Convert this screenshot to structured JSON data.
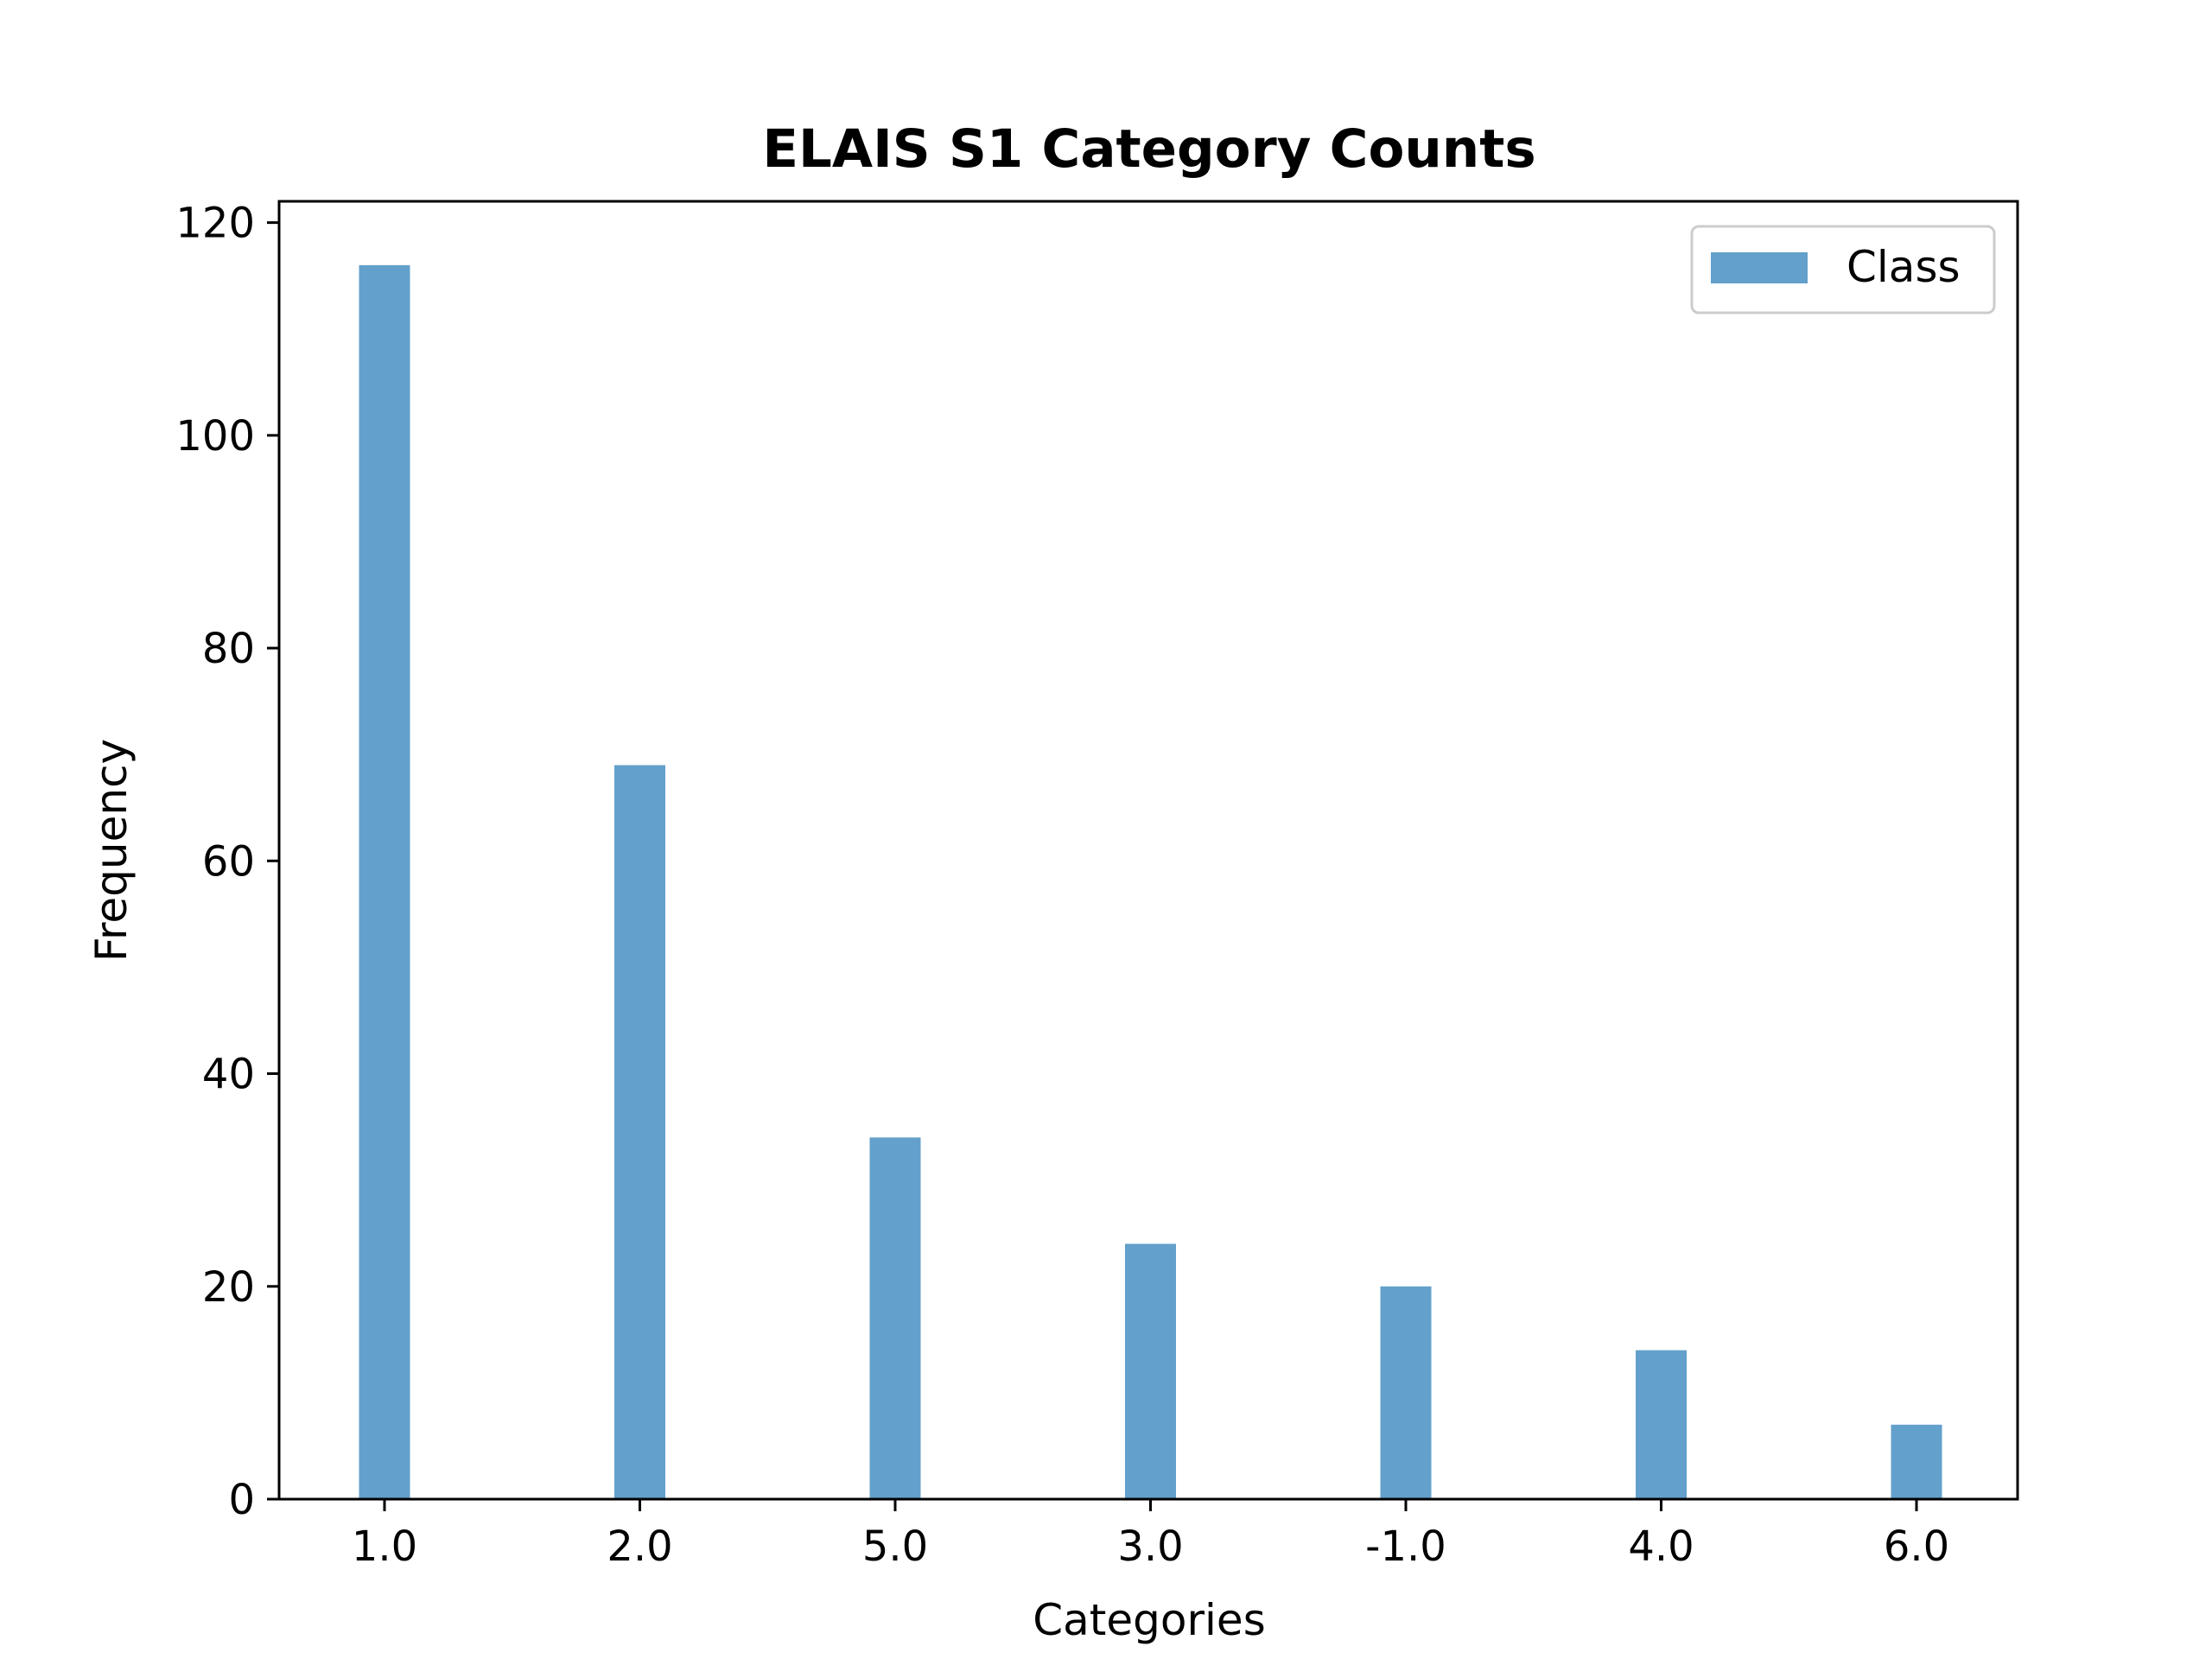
{
  "chart_data": {
    "type": "bar",
    "title": "ELAIS S1 Category Counts",
    "xlabel": "Categories",
    "ylabel": "Frequency",
    "categories": [
      "1.0",
      "2.0",
      "5.0",
      "3.0",
      "-1.0",
      "4.0",
      "6.0"
    ],
    "series": [
      {
        "name": "Class",
        "values": [
          116,
          69,
          34,
          24,
          20,
          14,
          7
        ],
        "color": "#63a0cb"
      }
    ],
    "ylim": [
      0,
      122
    ],
    "yticks": [
      0,
      20,
      40,
      60,
      80,
      100,
      120
    ],
    "grid": false,
    "legend": {
      "position": "top-right",
      "entries": [
        "Class"
      ]
    }
  }
}
